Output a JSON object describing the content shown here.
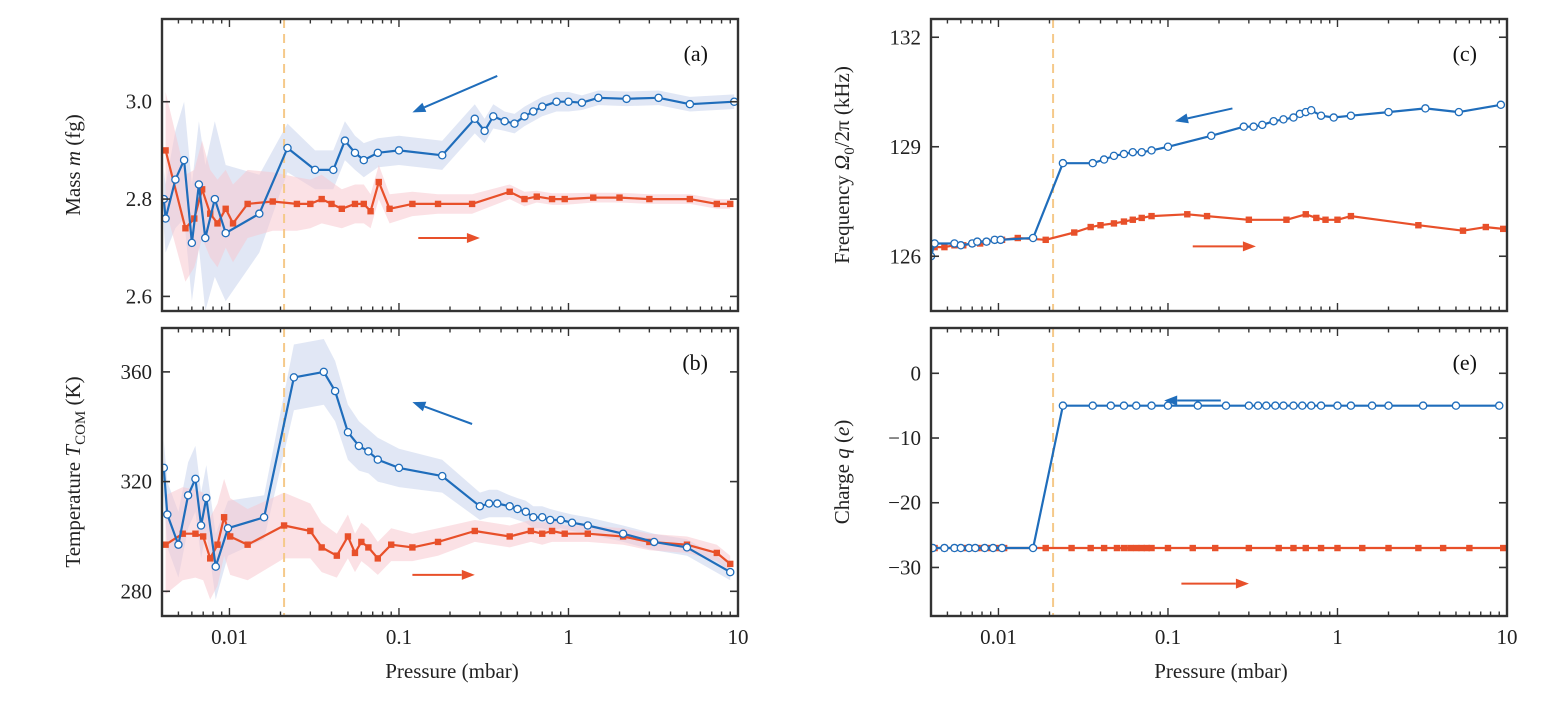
{
  "colors": {
    "decreasing": "#1f6dbb",
    "increasing": "#e8502a",
    "band_decreasing": "#c8d4ec",
    "band_increasing": "#f8c9cf",
    "threshold_line": "#f5c98a",
    "axis": "#333333"
  },
  "x_axis": {
    "label": "Pressure (mbar)",
    "scale": "log",
    "xlim": [
      0.004,
      10
    ],
    "ticks": [
      0.01,
      0.1,
      1,
      10
    ],
    "tick_labels": [
      "0.01",
      "0.1",
      "1",
      "10"
    ],
    "threshold": 0.021
  },
  "chart_data": [
    {
      "id": "a",
      "panel_label": "(a)",
      "type": "line",
      "ylabel_parts": [
        "Mass ",
        "m",
        " (fg)"
      ],
      "ylim": [
        2.57,
        3.17
      ],
      "yticks": [
        2.6,
        2.8,
        3.0
      ],
      "ytick_labels": [
        "2.6",
        "2.8",
        "3.0"
      ],
      "arrows": [
        {
          "series": "decreasing",
          "x0": 0.38,
          "y0": 3.053,
          "x1": 0.12,
          "y1": 2.978
        },
        {
          "series": "increasing",
          "x0": 0.13,
          "y0": 2.72,
          "x1": 0.3,
          "y1": 2.72
        }
      ],
      "series": [
        {
          "name": "decreasing",
          "marker": "circle",
          "x": [
            0.0041,
            0.0042,
            0.0048,
            0.0054,
            0.006,
            0.0066,
            0.0072,
            0.0082,
            0.0095,
            0.015,
            0.022,
            0.032,
            0.041,
            0.048,
            0.055,
            0.062,
            0.075,
            0.1,
            0.18,
            0.28,
            0.32,
            0.36,
            0.42,
            0.48,
            0.55,
            0.62,
            0.7,
            0.85,
            1.0,
            1.2,
            1.5,
            2.2,
            3.4,
            5.2,
            9.5
          ],
          "y": [
            2.8,
            2.76,
            2.84,
            2.88,
            2.71,
            2.83,
            2.72,
            2.8,
            2.73,
            2.77,
            2.905,
            2.86,
            2.86,
            2.92,
            2.895,
            2.88,
            2.895,
            2.9,
            2.89,
            2.965,
            2.94,
            2.97,
            2.96,
            2.955,
            2.97,
            2.98,
            2.99,
            3.0,
            3.0,
            2.998,
            3.008,
            3.006,
            3.008,
            2.995,
            3.0
          ],
          "band": [
            0.06,
            0.07,
            0.1,
            0.12,
            0.12,
            0.13,
            0.15,
            0.16,
            0.14,
            0.08,
            0.05,
            0.04,
            0.04,
            0.04,
            0.035,
            0.035,
            0.03,
            0.03,
            0.03,
            0.03,
            0.025,
            0.025,
            0.02,
            0.02,
            0.02,
            0.02,
            0.02,
            0.02,
            0.02,
            0.015,
            0.015,
            0.015,
            0.015,
            0.015,
            0.015
          ]
        },
        {
          "name": "increasing",
          "marker": "square",
          "x": [
            0.0042,
            0.0055,
            0.0062,
            0.0069,
            0.0077,
            0.0085,
            0.0095,
            0.0105,
            0.0128,
            0.018,
            0.025,
            0.03,
            0.035,
            0.04,
            0.046,
            0.055,
            0.062,
            0.068,
            0.076,
            0.088,
            0.12,
            0.17,
            0.27,
            0.45,
            0.55,
            0.65,
            0.8,
            0.95,
            1.4,
            2.0,
            3.0,
            5.2,
            7.5,
            9.0
          ],
          "y": [
            2.9,
            2.74,
            2.76,
            2.82,
            2.77,
            2.75,
            2.78,
            2.75,
            2.79,
            2.795,
            2.79,
            2.79,
            2.8,
            2.79,
            2.78,
            2.79,
            2.79,
            2.775,
            2.835,
            2.78,
            2.79,
            2.79,
            2.79,
            2.815,
            2.8,
            2.805,
            2.8,
            2.8,
            2.803,
            2.803,
            2.8,
            2.8,
            2.79,
            2.79
          ],
          "band": [
            0.12,
            0.11,
            0.1,
            0.1,
            0.09,
            0.09,
            0.08,
            0.08,
            0.07,
            0.06,
            0.055,
            0.05,
            0.05,
            0.045,
            0.04,
            0.04,
            0.04,
            0.035,
            0.035,
            0.03,
            0.025,
            0.02,
            0.02,
            0.015,
            0.015,
            0.012,
            0.012,
            0.012,
            0.01,
            0.01,
            0.01,
            0.01,
            0.01,
            0.01
          ]
        }
      ]
    },
    {
      "id": "b",
      "panel_label": "(b)",
      "type": "line",
      "ylabel_parts": [
        "Temperature ",
        "T",
        "COM",
        " (K)"
      ],
      "ylim": [
        271,
        376
      ],
      "yticks": [
        280,
        320,
        360
      ],
      "ytick_labels": [
        "280",
        "320",
        "360"
      ],
      "arrows": [
        {
          "series": "decreasing",
          "x0": 0.27,
          "y0": 341,
          "x1": 0.12,
          "y1": 349
        },
        {
          "series": "increasing",
          "x0": 0.12,
          "y0": 286,
          "x1": 0.28,
          "y1": 286
        }
      ],
      "series": [
        {
          "name": "decreasing",
          "marker": "circle",
          "x": [
            0.0041,
            0.0043,
            0.005,
            0.0057,
            0.0063,
            0.0068,
            0.0073,
            0.0083,
            0.0098,
            0.016,
            0.024,
            0.036,
            0.042,
            0.05,
            0.058,
            0.066,
            0.075,
            0.1,
            0.18,
            0.3,
            0.34,
            0.38,
            0.45,
            0.5,
            0.56,
            0.62,
            0.7,
            0.78,
            0.9,
            1.05,
            1.3,
            2.1,
            3.2,
            5.0,
            9.0
          ],
          "y": [
            325,
            308,
            297,
            315,
            321,
            304,
            314,
            289,
            303,
            307,
            358,
            360,
            353,
            338,
            333,
            331,
            328,
            325,
            322,
            311,
            312,
            312,
            311,
            310,
            309,
            307,
            307,
            306,
            306,
            305,
            304,
            301,
            298,
            296,
            287
          ],
          "band": [
            10,
            12,
            12,
            12,
            12,
            12,
            12,
            12,
            10,
            8,
            12,
            12,
            11,
            10,
            9,
            8,
            8,
            7,
            6,
            5,
            5,
            5,
            4,
            4,
            4,
            4,
            4,
            4,
            3,
            3,
            3,
            3,
            3,
            3,
            3
          ]
        },
        {
          "name": "increasing",
          "marker": "square",
          "x": [
            0.0042,
            0.0053,
            0.0063,
            0.007,
            0.0077,
            0.0085,
            0.0093,
            0.0101,
            0.0128,
            0.021,
            0.03,
            0.035,
            0.043,
            0.05,
            0.055,
            0.06,
            0.066,
            0.075,
            0.09,
            0.12,
            0.17,
            0.28,
            0.45,
            0.6,
            0.7,
            0.8,
            0.95,
            1.3,
            2.1,
            3.0,
            5.0,
            7.5,
            9.0
          ],
          "y": [
            297,
            301,
            301,
            300,
            292,
            297,
            307,
            300,
            297,
            304,
            302,
            296,
            293,
            300,
            294,
            298,
            296,
            292,
            297,
            296,
            298,
            302,
            300,
            302,
            301,
            302,
            301,
            301,
            300,
            298,
            297,
            294,
            290
          ],
          "band": [
            18,
            17,
            16,
            16,
            15,
            15,
            14,
            14,
            13,
            12,
            10,
            9,
            8,
            8,
            7,
            7,
            7,
            6,
            6,
            5,
            5,
            4,
            4,
            4,
            4,
            4,
            3,
            3,
            3,
            3,
            3,
            3,
            3
          ]
        }
      ]
    },
    {
      "id": "c",
      "panel_label": "(c)",
      "type": "line",
      "ylabel_parts": [
        "Frequency ",
        "Ω",
        "0",
        "/2π (kHz)"
      ],
      "ylim": [
        124.5,
        132.5
      ],
      "yticks": [
        126,
        129,
        132
      ],
      "ytick_labels": [
        "126",
        "129",
        "132"
      ],
      "arrows": [
        {
          "series": "decreasing",
          "x0": 0.24,
          "y0": 130.05,
          "x1": 0.11,
          "y1": 129.7
        },
        {
          "series": "increasing",
          "x0": 0.14,
          "y0": 126.27,
          "x1": 0.33,
          "y1": 126.27
        }
      ],
      "series": [
        {
          "name": "decreasing",
          "marker": "circle",
          "x": [
            0.004,
            0.0042,
            0.0055,
            0.006,
            0.007,
            0.0075,
            0.0085,
            0.0095,
            0.0103,
            0.016,
            0.024,
            0.036,
            0.042,
            0.048,
            0.055,
            0.062,
            0.07,
            0.08,
            0.1,
            0.18,
            0.28,
            0.32,
            0.36,
            0.42,
            0.48,
            0.55,
            0.6,
            0.65,
            0.7,
            0.8,
            0.95,
            1.2,
            2.0,
            3.3,
            5.2,
            9.2
          ],
          "y": [
            126.0,
            126.35,
            126.35,
            126.3,
            126.35,
            126.4,
            126.4,
            126.45,
            126.45,
            126.5,
            128.55,
            128.55,
            128.65,
            128.75,
            128.8,
            128.85,
            128.85,
            128.9,
            129.0,
            129.3,
            129.55,
            129.55,
            129.6,
            129.7,
            129.75,
            129.8,
            129.9,
            129.95,
            130.0,
            129.85,
            129.8,
            129.85,
            129.95,
            130.05,
            129.95,
            130.15
          ]
        },
        {
          "name": "increasing",
          "marker": "square",
          "x": [
            0.0042,
            0.0048,
            0.0055,
            0.0062,
            0.007,
            0.0078,
            0.0085,
            0.0095,
            0.0105,
            0.013,
            0.019,
            0.028,
            0.035,
            0.04,
            0.048,
            0.055,
            0.062,
            0.07,
            0.08,
            0.13,
            0.17,
            0.3,
            0.5,
            0.65,
            0.75,
            0.85,
            1.0,
            1.2,
            3.0,
            5.5,
            7.5,
            9.5
          ],
          "y": [
            126.25,
            126.25,
            126.3,
            126.3,
            126.35,
            126.35,
            126.4,
            126.45,
            126.45,
            126.5,
            126.45,
            126.65,
            126.8,
            126.85,
            126.9,
            126.95,
            127.0,
            127.05,
            127.1,
            127.15,
            127.1,
            127.0,
            127.0,
            127.15,
            127.05,
            127.0,
            127.0,
            127.1,
            126.85,
            126.7,
            126.8,
            126.75
          ]
        }
      ]
    },
    {
      "id": "e",
      "panel_label": "(e)",
      "type": "line",
      "ylabel_parts": [
        "Charge ",
        "q",
        " (",
        "e",
        ")"
      ],
      "ylim": [
        -37.5,
        7
      ],
      "yticks": [
        -30,
        -20,
        -10,
        0
      ],
      "ytick_labels": [
        "−30",
        "−20",
        "−10",
        "0"
      ],
      "arrows": [
        {
          "series": "decreasing",
          "x0": 0.205,
          "y0": -4.2,
          "x1": 0.095,
          "y1": -4.2
        },
        {
          "series": "increasing",
          "x0": 0.12,
          "y0": -32.5,
          "x1": 0.3,
          "y1": -32.5
        }
      ],
      "series": [
        {
          "name": "decreasing",
          "marker": "circle",
          "x": [
            0.0041,
            0.0048,
            0.0055,
            0.006,
            0.0067,
            0.0073,
            0.0083,
            0.0093,
            0.0105,
            0.016,
            0.024,
            0.036,
            0.046,
            0.055,
            0.065,
            0.08,
            0.1,
            0.15,
            0.22,
            0.3,
            0.34,
            0.38,
            0.43,
            0.48,
            0.55,
            0.62,
            0.7,
            0.8,
            1.0,
            1.2,
            1.6,
            2.0,
            3.2,
            5.0,
            9.0
          ],
          "y": [
            -27,
            -27,
            -27,
            -27,
            -27,
            -27,
            -27,
            -27,
            -27,
            -27,
            -5,
            -5,
            -5,
            -5,
            -5,
            -5,
            -5,
            -5,
            -5,
            -5,
            -5,
            -5,
            -5,
            -5,
            -5,
            -5,
            -5,
            -5,
            -5,
            -5,
            -5,
            -5,
            -5,
            -5,
            -5
          ]
        },
        {
          "name": "increasing",
          "marker": "square",
          "x": [
            0.0042,
            0.0048,
            0.0055,
            0.0062,
            0.0068,
            0.0075,
            0.0082,
            0.009,
            0.0098,
            0.0108,
            0.019,
            0.027,
            0.035,
            0.042,
            0.05,
            0.055,
            0.06,
            0.065,
            0.07,
            0.075,
            0.08,
            0.1,
            0.14,
            0.19,
            0.3,
            0.45,
            0.55,
            0.65,
            0.8,
            1.0,
            1.4,
            2.0,
            3.0,
            4.2,
            6.0,
            9.5
          ],
          "y": [
            -27,
            -27,
            -27,
            -27,
            -27,
            -27,
            -27,
            -27,
            -27,
            -27,
            -27,
            -27,
            -27,
            -27,
            -27,
            -27,
            -27,
            -27,
            -27,
            -27,
            -27,
            -27,
            -27,
            -27,
            -27,
            -27,
            -27,
            -27,
            -27,
            -27,
            -27,
            -27,
            -27,
            -27,
            -27,
            -27
          ]
        }
      ]
    }
  ]
}
